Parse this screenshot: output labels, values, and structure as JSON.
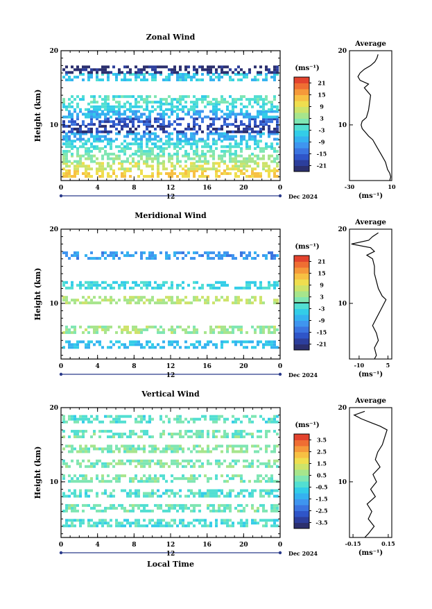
{
  "colors": {
    "scale": [
      "#2b2f6e",
      "#2c3e9c",
      "#2f55c8",
      "#3b74e0",
      "#3f95ef",
      "#35b2f0",
      "#33cde8",
      "#52dfd2",
      "#7fe6b3",
      "#a7e58c",
      "#cde36a",
      "#efde4f",
      "#f7c043",
      "#f5993a",
      "#ef6e33",
      "#e3432e"
    ],
    "calm": "#ffffff"
  },
  "chart_data": [
    {
      "type": "heatmap",
      "title": "Zonal Wind",
      "ylabel": "Height (km)",
      "xlabel": "",
      "x_ticks": [
        "0",
        "4",
        "8",
        "12",
        "16",
        "20",
        "0"
      ],
      "xlim": [
        0,
        24
      ],
      "y_ticks": [
        "20",
        "10"
      ],
      "ylim": [
        2.5,
        20
      ],
      "date_label": "12",
      "date_right": "Dec 2024",
      "colorbar": {
        "unit": "(ms⁻¹)",
        "ticks": [
          "21",
          "15",
          "9",
          "3",
          "-3",
          "-9",
          "-15",
          "-21"
        ],
        "vmin": -24,
        "vmax": 24,
        "zero_line": 0
      },
      "rows": [
        {
          "z": 3.5,
          "v": 12
        },
        {
          "z": 4.5,
          "v": 8
        },
        {
          "z": 5.5,
          "v": 3
        },
        {
          "z": 6.5,
          "v": 0
        },
        {
          "z": 7.5,
          "v": -3
        },
        {
          "z": 8.5,
          "v": -8
        },
        {
          "z": 9.5,
          "v": -20
        },
        {
          "z": 10.5,
          "v": -16
        },
        {
          "z": 11.5,
          "v": -8
        },
        {
          "z": 12.5,
          "v": -3
        },
        {
          "z": 13.5,
          "v": -1
        },
        {
          "z": 16.5,
          "v": -5
        },
        {
          "z": 17.5,
          "v": -22
        }
      ],
      "average": {
        "title": "Average",
        "unit": "(ms⁻¹)",
        "x_ticks": [
          "-30",
          "10"
        ],
        "xlim": [
          -30,
          10
        ],
        "y_ticks": [
          "20",
          "10"
        ],
        "z": [
          2.5,
          3,
          3.5,
          4,
          5,
          6,
          7,
          8,
          8.5,
          9,
          9.5,
          10,
          10.5,
          11,
          12,
          13,
          14,
          14.5,
          15,
          15.5,
          16,
          16.5,
          17,
          17.5,
          18,
          18.5,
          19,
          19.5
        ],
        "v": [
          8,
          9,
          8,
          6,
          4,
          0,
          -4,
          -8,
          -12,
          -15,
          -18,
          -19,
          -18,
          -14,
          -12,
          -11,
          -10,
          -13,
          -16,
          -12,
          -20,
          -22,
          -20,
          -16,
          -10,
          -6,
          -4,
          -3
        ]
      }
    },
    {
      "type": "heatmap",
      "title": "Meridional Wind",
      "ylabel": "Height (km)",
      "xlabel": "",
      "x_ticks": [
        "0",
        "4",
        "8",
        "12",
        "16",
        "20",
        "0"
      ],
      "xlim": [
        0,
        24
      ],
      "y_ticks": [
        "20",
        "10"
      ],
      "ylim": [
        2.5,
        20
      ],
      "date_label": "12",
      "date_right": "Dec 2024",
      "colorbar": {
        "unit": "(ms⁻¹)",
        "ticks": [
          "21",
          "15",
          "9",
          "3",
          "-3",
          "-9",
          "-15",
          "-21"
        ],
        "vmin": -24,
        "vmax": 24,
        "zero_line": 0
      },
      "rows": [
        {
          "z": 4.5,
          "v": -6
        },
        {
          "z": 6.5,
          "v": 4
        },
        {
          "z": 10.5,
          "v": 6
        },
        {
          "z": 12.5,
          "v": -3
        },
        {
          "z": 16.5,
          "v": -10
        }
      ],
      "average": {
        "title": "Average",
        "unit": "(ms⁻¹)",
        "x_ticks": [
          "-10",
          "5"
        ],
        "xlim": [
          -15,
          7
        ],
        "y_ticks": [
          "20",
          "10"
        ],
        "z": [
          2.5,
          3,
          4,
          5,
          6,
          7,
          8,
          9,
          10,
          10.5,
          11,
          12,
          13,
          14,
          15,
          16,
          16.5,
          17,
          17.5,
          18,
          18.5,
          19,
          19.5
        ],
        "v": [
          -2,
          -1,
          -2,
          0,
          -1,
          -3,
          -1,
          1,
          3,
          4,
          2,
          0,
          -1,
          -2,
          -2,
          -3,
          -6,
          -2,
          -4,
          -14,
          -5,
          -3,
          0
        ]
      }
    },
    {
      "type": "heatmap",
      "title": "Vertical Wind",
      "ylabel": "Height (km)",
      "xlabel": "Local Time",
      "x_ticks": [
        "0",
        "4",
        "8",
        "12",
        "16",
        "20",
        "0"
      ],
      "xlim": [
        0,
        24
      ],
      "y_ticks": [
        "20",
        "10"
      ],
      "ylim": [
        2.5,
        20
      ],
      "date_label": "12",
      "date_right": "Dec 2024",
      "colorbar": {
        "unit": "(ms⁻¹)",
        "ticks": [
          "3.5",
          "2.5",
          "1.5",
          "0.5",
          "-0.5",
          "-1.5",
          "-2.5",
          "-3.5"
        ],
        "vmin": -4,
        "vmax": 4,
        "zero_line": null
      },
      "rows": [
        {
          "z": 4.5,
          "v": -0.3
        },
        {
          "z": 6.5,
          "v": 0.1
        },
        {
          "z": 8.5,
          "v": -0.2
        },
        {
          "z": 10.5,
          "v": 0.2
        },
        {
          "z": 12.5,
          "v": 0.3
        },
        {
          "z": 14.5,
          "v": 0.4
        },
        {
          "z": 16.5,
          "v": 0.1
        },
        {
          "z": 18.5,
          "v": -0.1
        }
      ],
      "average": {
        "title": "Average",
        "unit": "(ms⁻¹)",
        "x_ticks": [
          "-0.15",
          "0.15"
        ],
        "xlim": [
          -0.18,
          0.18
        ],
        "y_ticks": [
          "20",
          "10"
        ],
        "z": [
          2.5,
          3,
          4,
          5,
          6,
          7,
          8,
          9,
          10,
          11,
          12,
          13,
          14,
          15,
          16,
          17,
          17.5,
          18,
          18.5,
          19,
          19.5
        ],
        "v": [
          -0.05,
          -0.02,
          0.03,
          -0.02,
          0.01,
          -0.03,
          0.04,
          0.0,
          0.05,
          0.02,
          0.08,
          0.04,
          0.06,
          0.1,
          0.12,
          0.14,
          0.08,
          0.0,
          -0.08,
          -0.14,
          -0.05
        ]
      }
    }
  ]
}
